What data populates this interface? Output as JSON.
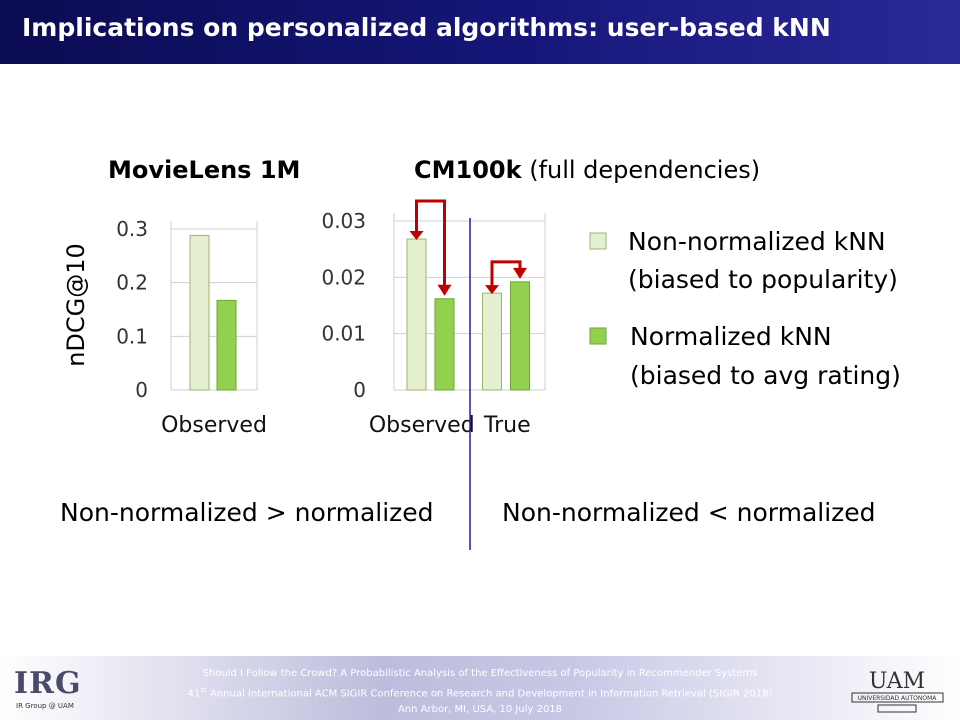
{
  "slide": {
    "title": "Implications on personalized algorithms: user-based kNN",
    "ylabel": "nDCG@10",
    "conclusion_left": "Non-normalized > normalized",
    "conclusion_right": "Non-normalized < normalized"
  },
  "footer": {
    "line1": "Should I Follow the Crowd? A Probabilistic Analysis of the Effectiveness of Popularity in Recommender Systems",
    "line2_sup": "st",
    "line2_num": "41",
    "line2_rest": " Annual International ACM SIGIR Conference on Research and Development in Information Retrieval (SIGIR 2018)",
    "line3": "Ann Arbor, MI, USA, 10 July 2018",
    "irg_logo": "IRG",
    "irg_caption": "IR Group @ UAM",
    "uam_logo_text": "UAM",
    "uam_caption": "UNIVERSIDAD AUTONOMA"
  },
  "colors": {
    "non_normalized": "#e5f0d0",
    "normalized": "#92d050",
    "arrow": "#c00000",
    "divider": "#1f1f9f"
  },
  "chart_data": [
    {
      "type": "bar",
      "title_bold": "MovieLens 1M",
      "title_rest": "",
      "categories": [
        "Observed"
      ],
      "series": [
        {
          "name": "Non-normalized kNN (biased to popularity)",
          "values": [
            0.288
          ]
        },
        {
          "name": "Normalized kNN (biased to avg rating)",
          "values": [
            0.167
          ]
        }
      ],
      "yticks": [
        "0",
        "0.1",
        "0.2",
        "0.3"
      ],
      "ylim": [
        0,
        0.3
      ],
      "ylabel": "nDCG@10"
    },
    {
      "type": "bar",
      "title_bold": "CM100k",
      "title_rest": " (full dependencies)",
      "categories": [
        "Observed",
        "True"
      ],
      "series": [
        {
          "name": "Non-normalized kNN (biased to popularity)",
          "values": [
            0.0268,
            0.0172
          ]
        },
        {
          "name": "Normalized kNN (biased to avg rating)",
          "values": [
            0.0162,
            0.0192
          ]
        }
      ],
      "yticks": [
        "0",
        "0.01",
        "0.02",
        "0.03"
      ],
      "ylim": [
        0,
        0.03
      ]
    }
  ],
  "legend": [
    {
      "line1": "Non-normalized kNN",
      "line2": "(biased to popularity)"
    },
    {
      "line1": "Normalized kNN",
      "line2": "(biased to avg rating)"
    }
  ]
}
